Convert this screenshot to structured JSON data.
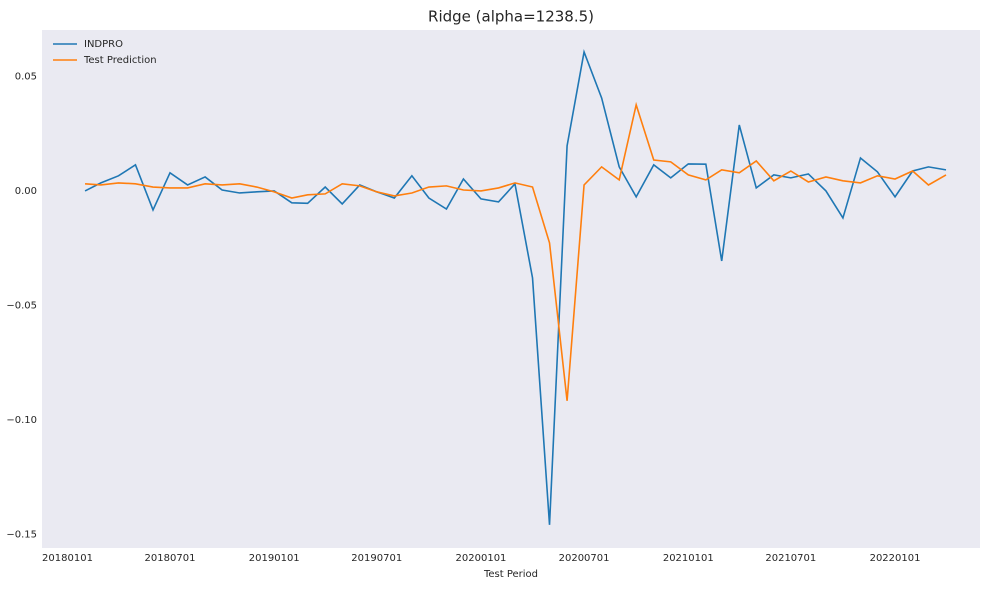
{
  "chart_data": {
    "type": "line",
    "title": "Ridge (alpha=1238.5)",
    "xlabel": "Test Period",
    "x": [
      "20180201",
      "20180301",
      "20180401",
      "20180501",
      "20180601",
      "20180701",
      "20180801",
      "20180901",
      "20181001",
      "20181101",
      "20181201",
      "20190101",
      "20190201",
      "20190301",
      "20190401",
      "20190501",
      "20190601",
      "20190701",
      "20190801",
      "20190901",
      "20191001",
      "20191101",
      "20191201",
      "20200101",
      "20200201",
      "20200301",
      "20200401",
      "20200501",
      "20200601",
      "20200701",
      "20200801",
      "20200901",
      "20201001",
      "20201101",
      "20201201",
      "20210101",
      "20210201",
      "20210301",
      "20210401",
      "20210501",
      "20210601",
      "20210701",
      "20210801",
      "20210901",
      "20211001",
      "20211101",
      "20211201",
      "20220101",
      "20220201",
      "20220301",
      "20220401"
    ],
    "series": [
      {
        "name": "INDPRO",
        "color": "#1f77b4",
        "values": [
          0.0,
          0.0035,
          0.0066,
          0.0114,
          -0.0083,
          0.0079,
          0.0026,
          0.0061,
          0.0004,
          -0.0009,
          -0.0004,
          0.0,
          -0.0052,
          -0.0054,
          0.0017,
          -0.0057,
          0.0026,
          -0.0004,
          -0.0031,
          0.0066,
          -0.0031,
          -0.0079,
          0.0052,
          -0.0035,
          -0.0048,
          0.0031,
          -0.038,
          -0.1459,
          0.0197,
          0.0607,
          0.0406,
          0.0105,
          -0.0026,
          0.0114,
          0.0057,
          0.0118,
          0.0117,
          -0.0306,
          0.0288,
          0.0013,
          0.007,
          0.0057,
          0.0074,
          0.0,
          -0.0118,
          0.0144,
          0.0083,
          -0.0026,
          0.0087,
          0.0105,
          0.0092
        ]
      },
      {
        "name": "Test Prediction",
        "color": "#ff7f0e",
        "values": [
          0.0031,
          0.0026,
          0.0035,
          0.0031,
          0.0017,
          0.0013,
          0.0013,
          0.0031,
          0.0026,
          0.0031,
          0.0017,
          -0.0004,
          -0.0031,
          -0.0017,
          -0.0013,
          0.0031,
          0.0022,
          -0.0004,
          -0.0022,
          -0.0009,
          0.0017,
          0.0022,
          0.0004,
          0.0,
          0.0013,
          0.0035,
          0.0017,
          -0.0227,
          -0.0917,
          0.0026,
          0.0105,
          0.0048,
          0.0376,
          0.0135,
          0.0127,
          0.007,
          0.0048,
          0.0092,
          0.0079,
          0.0131,
          0.0044,
          0.0087,
          0.0039,
          0.0061,
          0.0044,
          0.0035,
          0.0066,
          0.0052,
          0.0087,
          0.0026,
          0.007
        ]
      }
    ],
    "xlim": [
      "20171117",
      "20220531"
    ],
    "xticks": [
      "20180101",
      "20180701",
      "20190101",
      "20190701",
      "20200101",
      "20200701",
      "20210101",
      "20210701",
      "20220101"
    ],
    "ylim": [
      -0.156,
      0.0703
    ],
    "yticks": [
      0.05,
      {
        "value": 0,
        "label": "0.00"
      },
      {
        "value": -0.05,
        "label": "−0.05"
      },
      {
        "value": -0.1,
        "label": "−0.10"
      },
      {
        "value": -0.15,
        "label": "−0.15"
      }
    ],
    "grid": false,
    "legend": "upper left",
    "background": "#eaeaf2"
  }
}
